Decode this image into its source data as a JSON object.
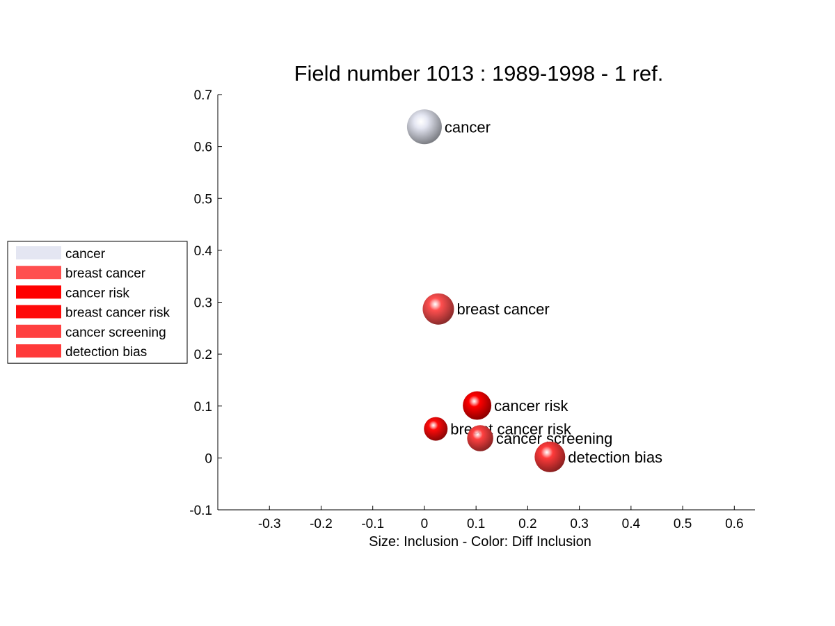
{
  "chart_data": {
    "type": "scatter",
    "title": "Field number 1013 : 1989-1998  - 1 ref.",
    "xlabel": "Size: Inclusion - Color: Diff Inclusion",
    "ylabel": "",
    "xlim": [
      -0.4,
      0.64
    ],
    "ylim": [
      -0.1,
      0.7
    ],
    "xticks": [
      -0.3,
      -0.2,
      -0.1,
      0,
      0.1,
      0.2,
      0.3,
      0.4,
      0.5,
      0.6
    ],
    "xtick_labels": [
      "-0.3",
      "-0.2",
      "-0.1",
      "0",
      "0.1",
      "0.2",
      "0.3",
      "0.4",
      "0.5",
      "0.6"
    ],
    "yticks": [
      -0.1,
      0,
      0.1,
      0.2,
      0.3,
      0.4,
      0.5,
      0.6,
      0.7
    ],
    "ytick_labels": [
      "-0.1",
      "0",
      "0.1",
      "0.2",
      "0.3",
      "0.4",
      "0.5",
      "0.6",
      "0.7"
    ],
    "grid": false,
    "legend_position": "outside-left",
    "points": [
      {
        "label": "cancer",
        "x": 0.0,
        "y": 0.638,
        "size": 1.0,
        "color": "#e4e6f2"
      },
      {
        "label": "breast cancer",
        "x": 0.027,
        "y": 0.287,
        "size": 0.9,
        "color": "#ff4f4f"
      },
      {
        "label": "cancer risk",
        "x": 0.102,
        "y": 0.101,
        "size": 0.82,
        "color": "#ff0000"
      },
      {
        "label": "breast cancer risk",
        "x": 0.022,
        "y": 0.056,
        "size": 0.68,
        "color": "#ff0a0a"
      },
      {
        "label": "cancer screening",
        "x": 0.108,
        "y": 0.038,
        "size": 0.75,
        "color": "#ff4040"
      },
      {
        "label": "detection bias",
        "x": 0.243,
        "y": 0.002,
        "size": 0.88,
        "color": "#ff3a3a"
      }
    ],
    "legend": [
      {
        "label": "cancer",
        "color": "#e4e6f2"
      },
      {
        "label": "breast cancer",
        "color": "#ff4f4f"
      },
      {
        "label": "cancer risk",
        "color": "#ff0000"
      },
      {
        "label": "breast cancer risk",
        "color": "#ff0a0a"
      },
      {
        "label": "cancer screening",
        "color": "#ff4040"
      },
      {
        "label": "detection bias",
        "color": "#ff3a3a"
      }
    ]
  }
}
